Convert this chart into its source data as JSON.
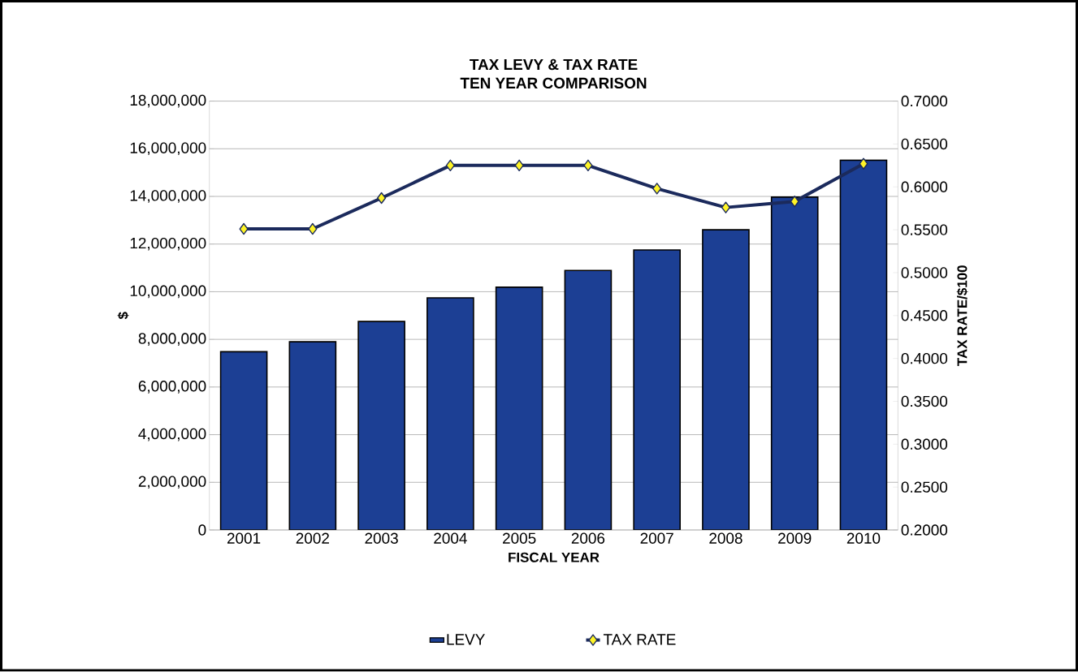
{
  "chart_data": {
    "type": "bar",
    "title": "TAX LEVY & TAX RATE",
    "subtitle": "TEN YEAR COMPARISON",
    "xlabel": "FISCAL YEAR",
    "ylabel": "$",
    "y2label": "TAX RATE/$100",
    "categories": [
      "2001",
      "2002",
      "2003",
      "2004",
      "2005",
      "2006",
      "2007",
      "2008",
      "2009",
      "2010"
    ],
    "series": [
      {
        "name": "LEVY",
        "color": "#1c3f94",
        "values": [
          7480000,
          7900000,
          8750000,
          9740000,
          10190000,
          10890000,
          11750000,
          12600000,
          13970000,
          15520000
        ]
      },
      {
        "name": "TAX RATE",
        "type": "line",
        "axis": "y2",
        "color": "#1b2a5c",
        "marker": "diamond",
        "values": [
          0.551,
          0.551,
          0.587,
          0.625,
          0.625,
          0.625,
          0.598,
          0.576,
          0.583,
          0.627
        ]
      }
    ],
    "ylim": [
      0,
      18000000
    ],
    "yticks": [
      {
        "value": 0,
        "label": "0"
      },
      {
        "value": 2000000,
        "label": "2,000,000"
      },
      {
        "value": 4000000,
        "label": "4,000,000"
      },
      {
        "value": 6000000,
        "label": "6,000,000"
      },
      {
        "value": 8000000,
        "label": "8,000,000"
      },
      {
        "value": 10000000,
        "label": "10,000,000"
      },
      {
        "value": 12000000,
        "label": "12,000,000"
      },
      {
        "value": 14000000,
        "label": "14,000,000"
      },
      {
        "value": 16000000,
        "label": "16,000,000"
      },
      {
        "value": 18000000,
        "label": "18,000,000"
      }
    ],
    "y2lim": [
      0.2,
      0.7
    ],
    "y2ticks": [
      {
        "value": 0.2,
        "label": "0.2000"
      },
      {
        "value": 0.25,
        "label": "0.2500"
      },
      {
        "value": 0.3,
        "label": "0.3000"
      },
      {
        "value": 0.35,
        "label": "0.3500"
      },
      {
        "value": 0.4,
        "label": "0.4000"
      },
      {
        "value": 0.45,
        "label": "0.4500"
      },
      {
        "value": 0.5,
        "label": "0.5000"
      },
      {
        "value": 0.55,
        "label": "0.5500"
      },
      {
        "value": 0.6,
        "label": "0.6000"
      },
      {
        "value": 0.65,
        "label": "0.6500"
      },
      {
        "value": 0.7,
        "label": "0.7000"
      }
    ],
    "grid": "y",
    "legend": "bottom"
  }
}
